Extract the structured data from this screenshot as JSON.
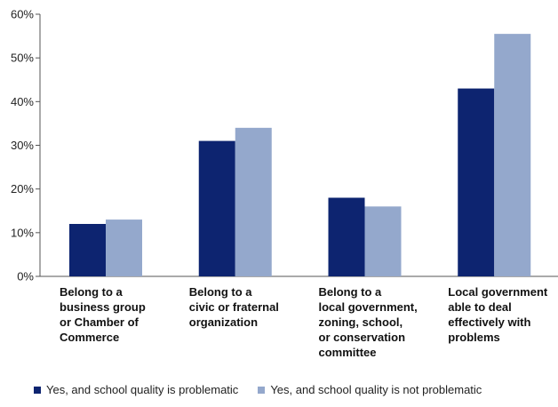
{
  "chart_data": {
    "type": "bar",
    "categories": [
      [
        "Belong to a",
        "business group",
        "or Chamber of",
        "Commerce"
      ],
      [
        "Belong to a",
        "civic or fraternal",
        "organization"
      ],
      [
        "Belong to a",
        "local government,",
        "zoning, school,",
        "or conservation",
        "committee"
      ],
      [
        "Local government",
        "able to deal",
        "effectively with",
        "problems"
      ]
    ],
    "series": [
      {
        "name": "Yes, and school quality is problematic",
        "color": "#0d2470",
        "values": [
          12,
          31,
          18,
          43
        ]
      },
      {
        "name": "Yes, and school quality is not problematic",
        "color": "#94a8cc",
        "values": [
          13,
          34,
          16,
          55.5
        ]
      }
    ],
    "ylim": [
      0,
      60
    ],
    "yticks": [
      0,
      10,
      20,
      30,
      40,
      50,
      60
    ],
    "ytick_labels": [
      "0%",
      "10%",
      "20%",
      "30%",
      "40%",
      "50%",
      "60%"
    ],
    "grid": false,
    "legend_position": "bottom",
    "title": "",
    "xlabel": "",
    "ylabel": ""
  }
}
